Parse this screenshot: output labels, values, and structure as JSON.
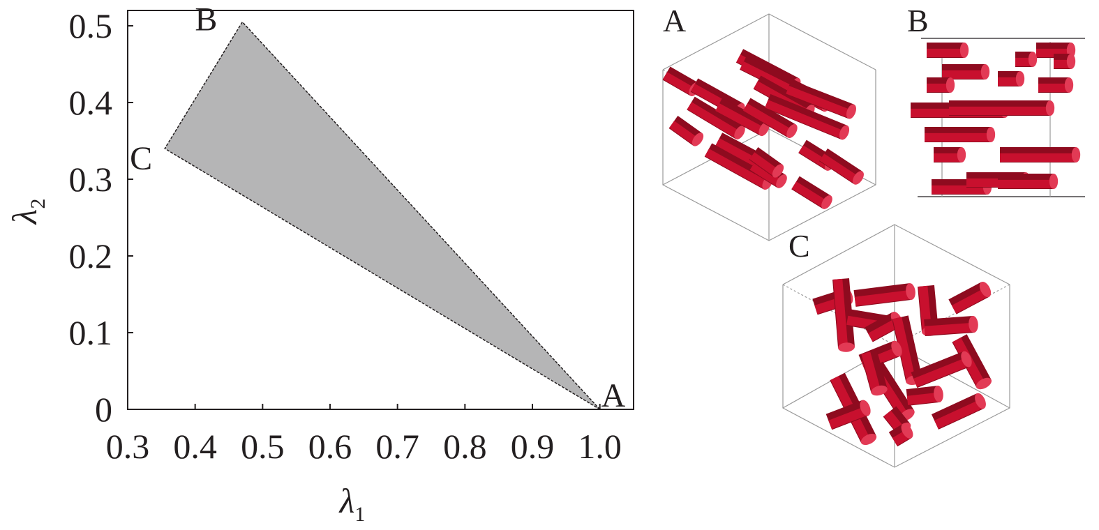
{
  "chart_data": {
    "type": "area",
    "xlabel": "λ",
    "xlabel_sub": "1",
    "ylabel": "λ",
    "ylabel_sub": "2",
    "xlim": [
      0.3,
      1.05
    ],
    "ylim": [
      0,
      0.52
    ],
    "x_ticks": [
      0.3,
      0.4,
      0.5,
      0.6,
      0.7,
      0.8,
      0.9,
      1.0
    ],
    "x_tick_labels": [
      "0.3",
      "0.4",
      "0.5",
      "0.6",
      "0.7",
      "0.8",
      "0.9",
      "1.0"
    ],
    "y_ticks": [
      0,
      0.1,
      0.2,
      0.3,
      0.4,
      0.5
    ],
    "y_tick_labels": [
      "0",
      "0.1",
      "0.2",
      "0.3",
      "0.4",
      "0.5"
    ],
    "grid": false,
    "fill_color": "#b5b5b6",
    "region": [
      {
        "name": "A",
        "x": 1.0,
        "y": 0.0
      },
      {
        "name": "B",
        "x": 0.47,
        "y": 0.505
      },
      {
        "name": "C",
        "x": 0.355,
        "y": 0.34
      }
    ]
  },
  "panels": [
    {
      "label": "A"
    },
    {
      "label": "B"
    },
    {
      "label": "C"
    }
  ],
  "colors": {
    "rod": "#c8102e",
    "rod_dark": "#8e0b1f",
    "rod_cap": "#e23a55",
    "box_line": "#9a9a9a"
  }
}
